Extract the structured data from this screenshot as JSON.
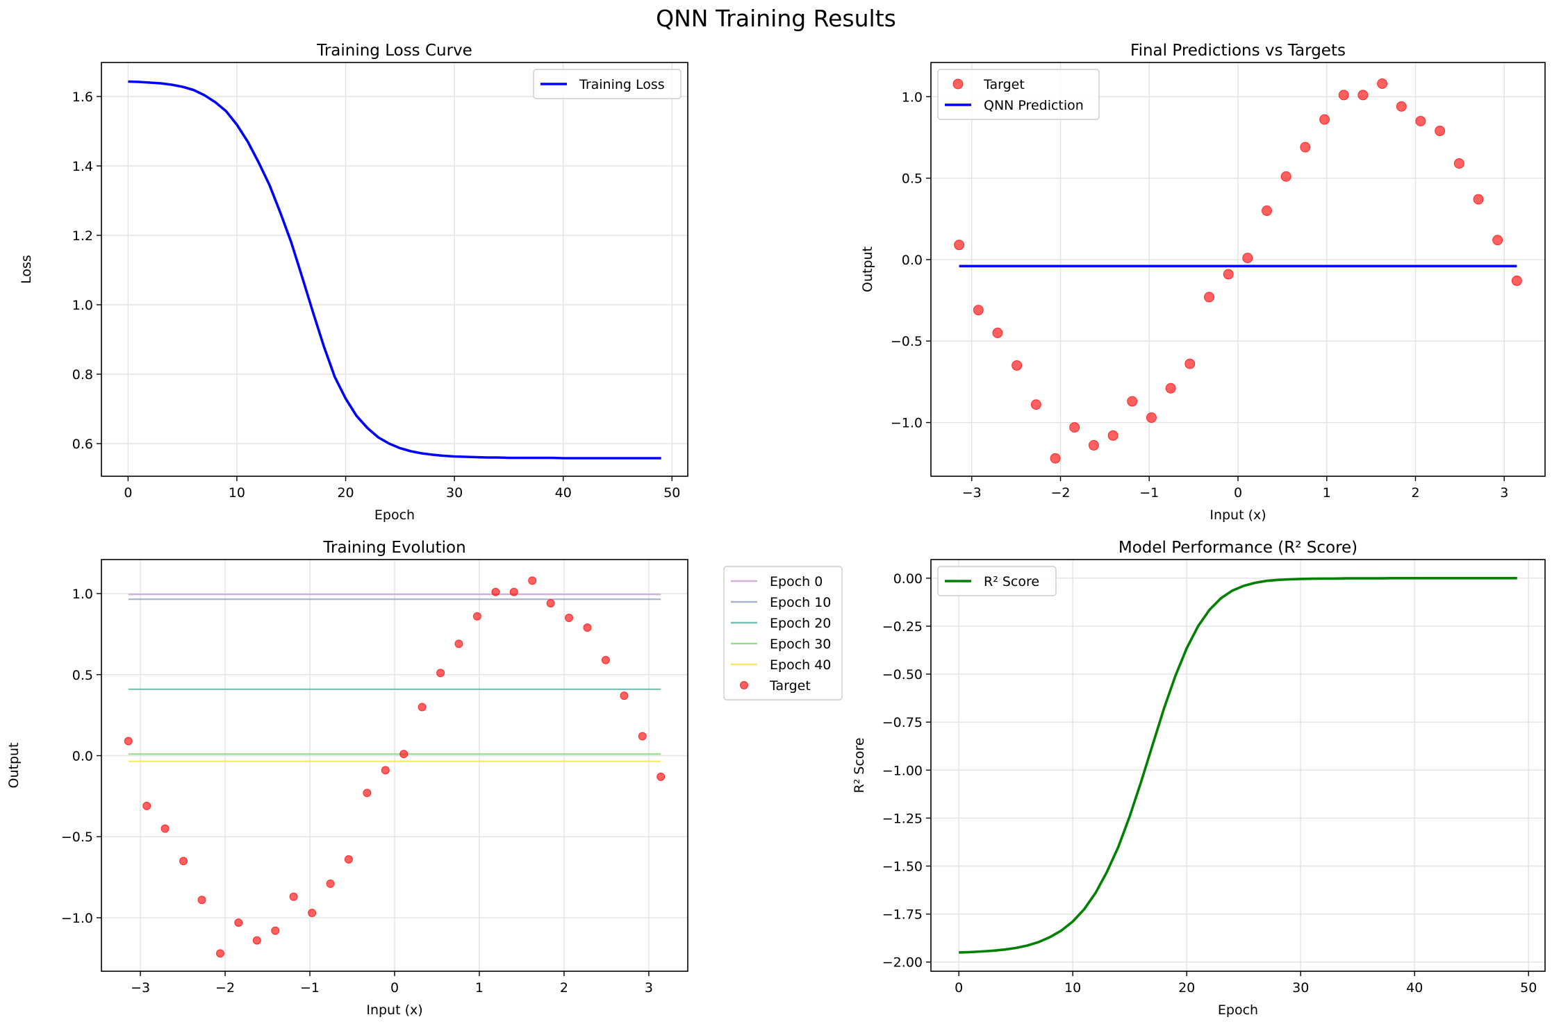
{
  "figure": {
    "suptitle": "QNN Training Results"
  },
  "chart_data": [
    {
      "type": "line",
      "title": "Training Loss Curve",
      "xlabel": "Epoch",
      "ylabel": "Loss",
      "xlim": [
        -2.45,
        51.45
      ],
      "ylim": [
        0.506,
        1.698
      ],
      "xticks": [
        0,
        10,
        20,
        30,
        40,
        50
      ],
      "xtick_labels": [
        "0",
        "10",
        "20",
        "30",
        "40",
        "50"
      ],
      "yticks": [
        0.6,
        0.8,
        1.0,
        1.2,
        1.4,
        1.6
      ],
      "ytick_labels": [
        "0.6",
        "0.8",
        "1.0",
        "1.2",
        "1.4",
        "1.6"
      ],
      "grid": true,
      "legend_position": "upper right",
      "x": [
        0,
        1,
        2,
        3,
        4,
        5,
        6,
        7,
        8,
        9,
        10,
        11,
        12,
        13,
        14,
        15,
        16,
        17,
        18,
        19,
        20,
        21,
        22,
        23,
        24,
        25,
        26,
        27,
        28,
        29,
        30,
        31,
        32,
        33,
        34,
        35,
        36,
        37,
        38,
        39,
        40,
        41,
        42,
        43,
        44,
        45,
        46,
        47,
        48,
        49
      ],
      "series": [
        {
          "name": "Training Loss",
          "color": "#0000ff",
          "values": [
            1.643,
            1.642,
            1.64,
            1.638,
            1.634,
            1.628,
            1.619,
            1.604,
            1.584,
            1.558,
            1.519,
            1.47,
            1.41,
            1.345,
            1.265,
            1.18,
            1.08,
            0.978,
            0.88,
            0.792,
            0.73,
            0.68,
            0.645,
            0.618,
            0.6,
            0.587,
            0.578,
            0.572,
            0.568,
            0.565,
            0.563,
            0.562,
            0.561,
            0.56,
            0.56,
            0.559,
            0.559,
            0.559,
            0.559,
            0.559,
            0.558,
            0.558,
            0.558,
            0.558,
            0.558,
            0.558,
            0.558,
            0.558,
            0.558,
            0.558
          ]
        }
      ]
    },
    {
      "type": "scatter",
      "title": "Final Predictions vs Targets",
      "xlabel": "Input (x)",
      "ylabel": "Output",
      "xlim": [
        -3.46,
        3.46
      ],
      "ylim": [
        -1.33,
        1.21
      ],
      "xticks": [
        -3,
        -2,
        -1,
        0,
        1,
        2,
        3
      ],
      "xtick_labels": [
        "−3",
        "−2",
        "−1",
        "0",
        "1",
        "2",
        "3"
      ],
      "yticks": [
        -1.0,
        -0.5,
        0.0,
        0.5,
        1.0
      ],
      "ytick_labels": [
        "−1.0",
        "−0.5",
        "0.0",
        "0.5",
        "1.0"
      ],
      "grid": true,
      "legend_position": "upper left",
      "scatter": {
        "name": "Target",
        "color": "#ff0000",
        "x": [
          -3.142,
          -2.925,
          -2.709,
          -2.492,
          -2.275,
          -2.058,
          -1.842,
          -1.625,
          -1.408,
          -1.192,
          -0.975,
          -0.758,
          -0.542,
          -0.325,
          -0.108,
          0.108,
          0.325,
          0.542,
          0.758,
          0.975,
          1.192,
          1.408,
          1.625,
          1.842,
          2.058,
          2.275,
          2.492,
          2.709,
          2.925,
          3.142
        ],
        "y": [
          0.09,
          -0.31,
          -0.45,
          -0.65,
          -0.89,
          -1.22,
          -1.03,
          -1.14,
          -1.08,
          -0.87,
          -0.97,
          -0.79,
          -0.64,
          -0.23,
          -0.09,
          0.01,
          0.3,
          0.51,
          0.69,
          0.86,
          1.01,
          1.01,
          1.08,
          0.94,
          0.85,
          0.79,
          0.59,
          0.37,
          0.12,
          -0.13
        ]
      },
      "series": [
        {
          "name": "QNN Prediction",
          "color": "#0000ff",
          "x": [
            -3.142,
            3.142
          ],
          "values": [
            -0.04,
            -0.04
          ]
        }
      ]
    },
    {
      "type": "scatter",
      "title": "Training Evolution",
      "xlabel": "Input (x)",
      "ylabel": "Output",
      "xlim": [
        -3.46,
        3.46
      ],
      "ylim": [
        -1.33,
        1.21
      ],
      "xticks": [
        -3,
        -2,
        -1,
        0,
        1,
        2,
        3
      ],
      "xtick_labels": [
        "−3",
        "−2",
        "−1",
        "0",
        "1",
        "2",
        "3"
      ],
      "yticks": [
        -1.0,
        -0.5,
        0.0,
        0.5,
        1.0
      ],
      "ytick_labels": [
        "−1.0",
        "−0.5",
        "0.0",
        "0.5",
        "1.0"
      ],
      "grid": true,
      "legend_position": "outside upper right",
      "series": [
        {
          "name": "Epoch 0",
          "color": "#c9a4c9",
          "x": [
            -3.142,
            3.142
          ],
          "values": [
            0.995,
            0.995
          ]
        },
        {
          "name": "Epoch 10",
          "color": "#9aa4c4",
          "x": [
            -3.142,
            3.142
          ],
          "values": [
            0.965,
            0.965
          ]
        },
        {
          "name": "Epoch 20",
          "color": "#5fb3a6",
          "x": [
            -3.142,
            3.142
          ],
          "values": [
            0.41,
            0.41
          ]
        },
        {
          "name": "Epoch 30",
          "color": "#86d67b",
          "x": [
            -3.142,
            3.142
          ],
          "values": [
            0.01,
            0.01
          ]
        },
        {
          "name": "Epoch 40",
          "color": "#f5e44a",
          "x": [
            -3.142,
            3.142
          ],
          "values": [
            -0.035,
            -0.035
          ]
        }
      ],
      "scatter": {
        "name": "Target",
        "color": "#ff0000",
        "x": [
          -3.142,
          -2.925,
          -2.709,
          -2.492,
          -2.275,
          -2.058,
          -1.842,
          -1.625,
          -1.408,
          -1.192,
          -0.975,
          -0.758,
          -0.542,
          -0.325,
          -0.108,
          0.108,
          0.325,
          0.542,
          0.758,
          0.975,
          1.192,
          1.408,
          1.625,
          1.842,
          2.058,
          2.275,
          2.492,
          2.709,
          2.925,
          3.142
        ],
        "y": [
          0.09,
          -0.31,
          -0.45,
          -0.65,
          -0.89,
          -1.22,
          -1.03,
          -1.14,
          -1.08,
          -0.87,
          -0.97,
          -0.79,
          -0.64,
          -0.23,
          -0.09,
          0.01,
          0.3,
          0.51,
          0.69,
          0.86,
          1.01,
          1.01,
          1.08,
          0.94,
          0.85,
          0.79,
          0.59,
          0.37,
          0.12,
          -0.13
        ]
      }
    },
    {
      "type": "line",
      "title": "Model Performance (R² Score)",
      "xlabel": "Epoch",
      "ylabel": "R² Score",
      "xlim": [
        -2.45,
        51.45
      ],
      "ylim": [
        -2.048,
        0.097
      ],
      "xticks": [
        0,
        10,
        20,
        30,
        40,
        50
      ],
      "xtick_labels": [
        "0",
        "10",
        "20",
        "30",
        "40",
        "50"
      ],
      "yticks": [
        -2.0,
        -1.75,
        -1.5,
        -1.25,
        -1.0,
        -0.75,
        -0.5,
        -0.25,
        0.0
      ],
      "ytick_labels": [
        "−2.00",
        "−1.75",
        "−1.50",
        "−1.25",
        "−1.00",
        "−0.75",
        "−0.50",
        "−0.25",
        "0.00"
      ],
      "grid": true,
      "legend_position": "upper left",
      "x": [
        0,
        1,
        2,
        3,
        4,
        5,
        6,
        7,
        8,
        9,
        10,
        11,
        12,
        13,
        14,
        15,
        16,
        17,
        18,
        19,
        20,
        21,
        22,
        23,
        24,
        25,
        26,
        27,
        28,
        29,
        30,
        31,
        32,
        33,
        34,
        35,
        36,
        37,
        38,
        39,
        40,
        41,
        42,
        43,
        44,
        45,
        46,
        47,
        48,
        49
      ],
      "series": [
        {
          "name": "R² Score",
          "color": "#008000",
          "values": [
            -1.95,
            -1.948,
            -1.945,
            -1.941,
            -1.935,
            -1.927,
            -1.914,
            -1.896,
            -1.87,
            -1.836,
            -1.789,
            -1.725,
            -1.64,
            -1.53,
            -1.4,
            -1.24,
            -1.06,
            -0.87,
            -0.68,
            -0.51,
            -0.365,
            -0.25,
            -0.165,
            -0.105,
            -0.065,
            -0.04,
            -0.024,
            -0.014,
            -0.009,
            -0.006,
            -0.004,
            -0.003,
            -0.002,
            -0.002,
            -0.001,
            -0.001,
            -0.001,
            -0.001,
            0.0,
            0.0,
            0.0,
            0.0,
            0.0,
            0.0,
            0.0,
            0.0,
            0.0,
            0.0,
            0.0,
            0.0
          ]
        }
      ]
    }
  ]
}
